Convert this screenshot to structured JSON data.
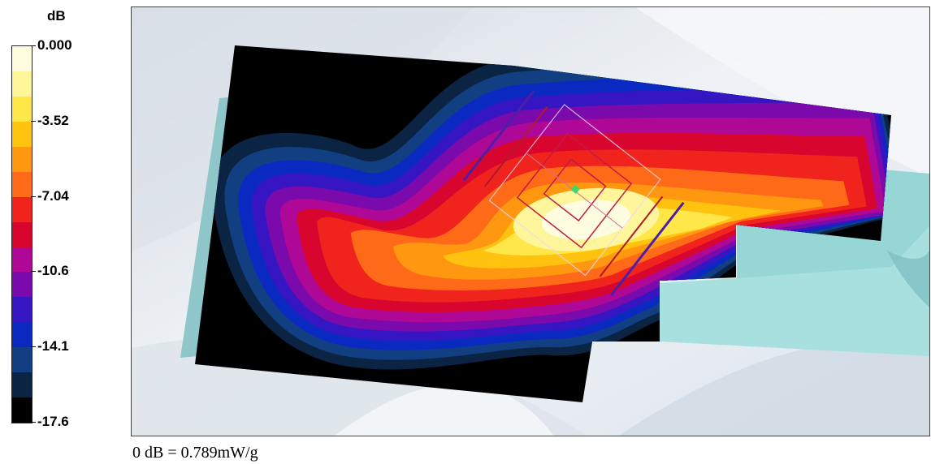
{
  "legend": {
    "unit": "dB",
    "labels": [
      "0.000",
      "-3.52",
      "-7.04",
      "-10.6",
      "-14.1",
      "-17.6"
    ],
    "colors": [
      "#fffde0",
      "#fff59a",
      "#ffe74a",
      "#ffc20e",
      "#ff9810",
      "#ff6a18",
      "#f0241c",
      "#d8062e",
      "#b00896",
      "#7a0aab",
      "#3516c2",
      "#0a29c0",
      "#123f82",
      "#0c2443",
      "#000000"
    ]
  },
  "reference": {
    "caption": "0 dB = 0.789mW/g"
  }
}
